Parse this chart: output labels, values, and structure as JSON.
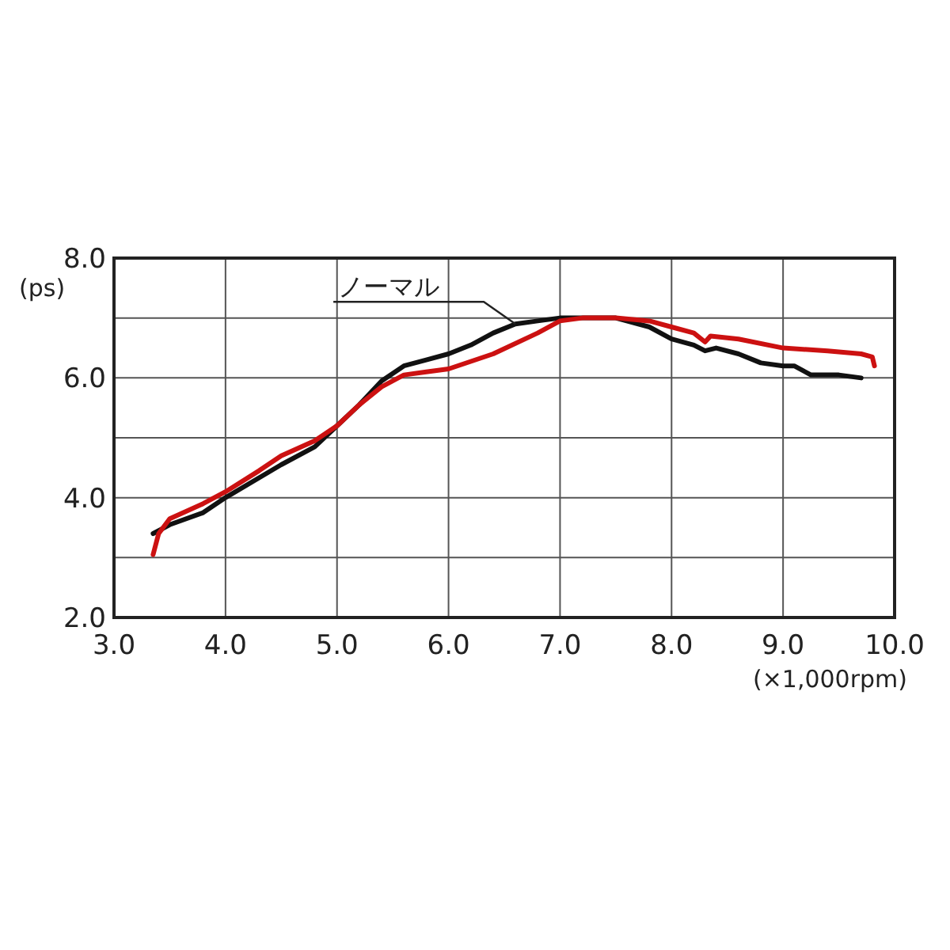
{
  "chart_data": {
    "type": "line",
    "xlabel": "(×1,000rpm)",
    "ylabel": "(ps)",
    "xlim": [
      3,
      10
    ],
    "ylim": [
      2,
      8
    ],
    "xticks": [
      {
        "value": 3,
        "label": "3.0"
      },
      {
        "value": 4,
        "label": "4.0"
      },
      {
        "value": 5,
        "label": "5.0"
      },
      {
        "value": 6,
        "label": "6.0"
      },
      {
        "value": 7,
        "label": "7.0"
      },
      {
        "value": 8,
        "label": "8.0"
      },
      {
        "value": 9,
        "label": "9.0"
      },
      {
        "value": 10,
        "label": "10.0"
      }
    ],
    "yticks": [
      {
        "value": 2,
        "label": "2.0"
      },
      {
        "value": 3,
        "label": null
      },
      {
        "value": 4,
        "label": "4.0"
      },
      {
        "value": 5,
        "label": null
      },
      {
        "value": 6,
        "label": "6.0"
      },
      {
        "value": 7,
        "label": null
      },
      {
        "value": 8,
        "label": "8.0"
      }
    ],
    "grid": true,
    "marker": "none",
    "line_style": "solid",
    "series": [
      {
        "color": "#111111",
        "x": [
          3.35,
          3.5,
          3.8,
          4.0,
          4.5,
          4.8,
          5.0,
          5.2,
          5.4,
          5.6,
          5.8,
          6.0,
          6.2,
          6.4,
          6.6,
          6.8,
          7.0,
          7.5,
          7.8,
          8.0,
          8.2,
          8.3,
          8.4,
          8.6,
          8.8,
          9.0,
          9.1,
          9.25,
          9.4,
          9.5,
          9.7
        ],
        "values": [
          3.4,
          3.55,
          3.75,
          4.0,
          4.55,
          4.85,
          5.2,
          5.55,
          5.95,
          6.2,
          6.3,
          6.4,
          6.55,
          6.75,
          6.9,
          6.95,
          7.0,
          7.0,
          6.85,
          6.65,
          6.55,
          6.45,
          6.5,
          6.4,
          6.25,
          6.2,
          6.2,
          6.05,
          6.05,
          6.05,
          6.0
        ]
      },
      {
        "color": "#cc1111",
        "x": [
          3.35,
          3.4,
          3.5,
          3.8,
          4.0,
          4.3,
          4.5,
          4.8,
          5.0,
          5.2,
          5.4,
          5.6,
          5.8,
          6.0,
          6.4,
          6.8,
          7.0,
          7.2,
          7.5,
          7.8,
          8.0,
          8.2,
          8.3,
          8.35,
          8.6,
          9.0,
          9.4,
          9.7,
          9.8,
          9.82
        ],
        "values": [
          3.05,
          3.4,
          3.65,
          3.9,
          4.1,
          4.45,
          4.7,
          4.95,
          5.2,
          5.55,
          5.85,
          6.05,
          6.1,
          6.15,
          6.4,
          6.75,
          6.95,
          7.0,
          7.0,
          6.95,
          6.85,
          6.75,
          6.6,
          6.7,
          6.65,
          6.5,
          6.45,
          6.4,
          6.35,
          6.2
        ]
      }
    ],
    "annotations": [
      {
        "text": "ノーマル",
        "x": 6.6,
        "y": 6.9
      }
    ]
  }
}
